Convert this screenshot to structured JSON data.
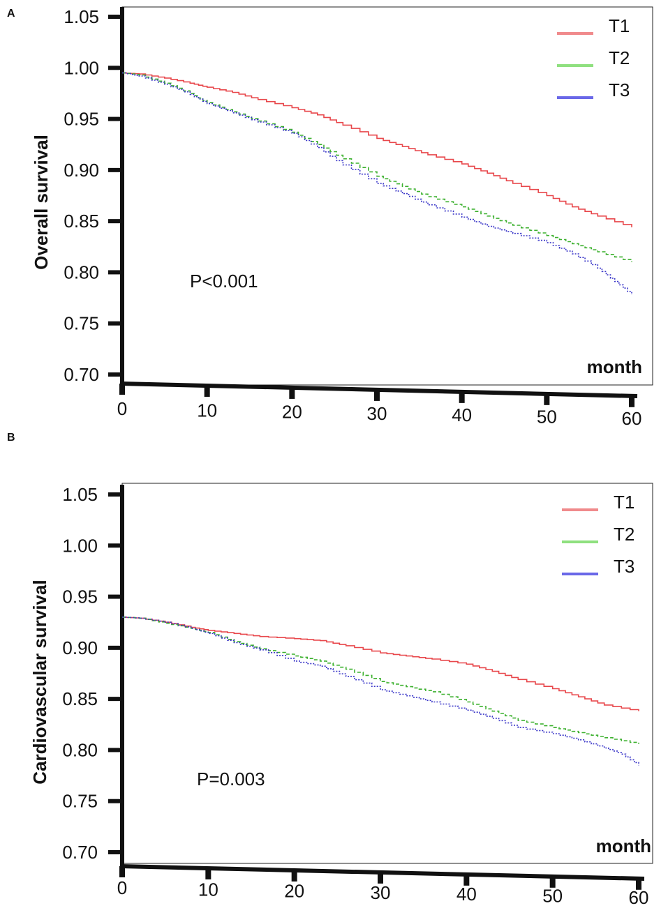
{
  "chart_data": [
    {
      "panel": "A",
      "type": "line",
      "title": "",
      "ylabel": "Overall survival",
      "xlabel": "month",
      "xlim": [
        0,
        60
      ],
      "ylim": [
        0.7,
        1.05
      ],
      "xticks": [
        0,
        10,
        20,
        30,
        40,
        50,
        60
      ],
      "yticks": [
        "1.05",
        "1.00",
        "0.95",
        "0.90",
        "0.85",
        "0.80",
        "0.75",
        "0.70"
      ],
      "annotation": "P<0.001",
      "legend": [
        "T1",
        "T2",
        "T3"
      ],
      "legend_position": "top-right",
      "series": [
        {
          "name": "T1",
          "color": "#e8474b",
          "dash": "solid",
          "x": [
            0,
            2,
            5,
            8,
            10,
            13,
            16,
            20,
            23,
            26,
            30,
            33,
            36,
            40,
            43,
            46,
            50,
            53,
            56,
            60
          ],
          "y": [
            0.995,
            0.994,
            0.99,
            0.985,
            0.981,
            0.976,
            0.969,
            0.961,
            0.954,
            0.944,
            0.931,
            0.923,
            0.915,
            0.906,
            0.897,
            0.887,
            0.875,
            0.864,
            0.855,
            0.844
          ]
        },
        {
          "name": "T2",
          "color": "#3cb02e",
          "dash": "dashed",
          "x": [
            0,
            2,
            5,
            8,
            10,
            13,
            16,
            20,
            23,
            26,
            30,
            33,
            36,
            40,
            43,
            46,
            50,
            53,
            56,
            60
          ],
          "y": [
            0.995,
            0.993,
            0.985,
            0.975,
            0.966,
            0.957,
            0.948,
            0.937,
            0.925,
            0.911,
            0.894,
            0.884,
            0.874,
            0.864,
            0.855,
            0.846,
            0.836,
            0.828,
            0.82,
            0.81
          ]
        },
        {
          "name": "T3",
          "color": "#3a36c8",
          "dash": "dotted",
          "x": [
            0,
            2,
            5,
            8,
            10,
            13,
            16,
            20,
            23,
            26,
            30,
            33,
            36,
            40,
            43,
            46,
            50,
            53,
            56,
            58,
            60
          ],
          "y": [
            0.995,
            0.992,
            0.984,
            0.974,
            0.965,
            0.956,
            0.947,
            0.936,
            0.922,
            0.905,
            0.887,
            0.877,
            0.866,
            0.854,
            0.845,
            0.838,
            0.829,
            0.818,
            0.804,
            0.791,
            0.778
          ]
        }
      ]
    },
    {
      "panel": "B",
      "type": "line",
      "title": "",
      "ylabel": "Cardiovascular survival",
      "xlabel": "month",
      "xlim": [
        0,
        60
      ],
      "ylim": [
        0.7,
        1.05
      ],
      "xticks": [
        0,
        10,
        20,
        30,
        40,
        50,
        60
      ],
      "yticks": [
        "1.05",
        "1.00",
        "0.95",
        "0.90",
        "0.85",
        "0.80",
        "0.75",
        "0.70"
      ],
      "annotation": "P=0.003",
      "legend": [
        "T1",
        "T2",
        "T3"
      ],
      "legend_position": "top-right",
      "series": [
        {
          "name": "T1",
          "color": "#e8474b",
          "dash": "solid",
          "x": [
            0,
            2,
            5,
            8,
            10,
            13,
            16,
            20,
            23,
            26,
            30,
            33,
            36,
            40,
            43,
            46,
            50,
            53,
            56,
            60
          ],
          "y": [
            0.93,
            0.929,
            0.925,
            0.92,
            0.917,
            0.914,
            0.911,
            0.909,
            0.907,
            0.902,
            0.895,
            0.892,
            0.889,
            0.884,
            0.877,
            0.869,
            0.86,
            0.852,
            0.844,
            0.838
          ]
        },
        {
          "name": "T2",
          "color": "#3cb02e",
          "dash": "dashed",
          "x": [
            0,
            2,
            5,
            8,
            10,
            13,
            16,
            20,
            23,
            26,
            30,
            33,
            36,
            40,
            43,
            46,
            50,
            53,
            56,
            60
          ],
          "y": [
            0.93,
            0.929,
            0.924,
            0.919,
            0.915,
            0.906,
            0.899,
            0.892,
            0.887,
            0.879,
            0.867,
            0.862,
            0.857,
            0.847,
            0.838,
            0.829,
            0.822,
            0.817,
            0.812,
            0.806
          ]
        },
        {
          "name": "T3",
          "color": "#3a36c8",
          "dash": "dotted",
          "x": [
            0,
            2,
            5,
            8,
            10,
            13,
            16,
            20,
            23,
            26,
            30,
            33,
            36,
            40,
            43,
            46,
            50,
            53,
            56,
            58,
            60
          ],
          "y": [
            0.93,
            0.929,
            0.925,
            0.919,
            0.914,
            0.905,
            0.898,
            0.887,
            0.882,
            0.872,
            0.859,
            0.853,
            0.847,
            0.839,
            0.831,
            0.822,
            0.816,
            0.81,
            0.802,
            0.796,
            0.785
          ]
        }
      ]
    }
  ]
}
